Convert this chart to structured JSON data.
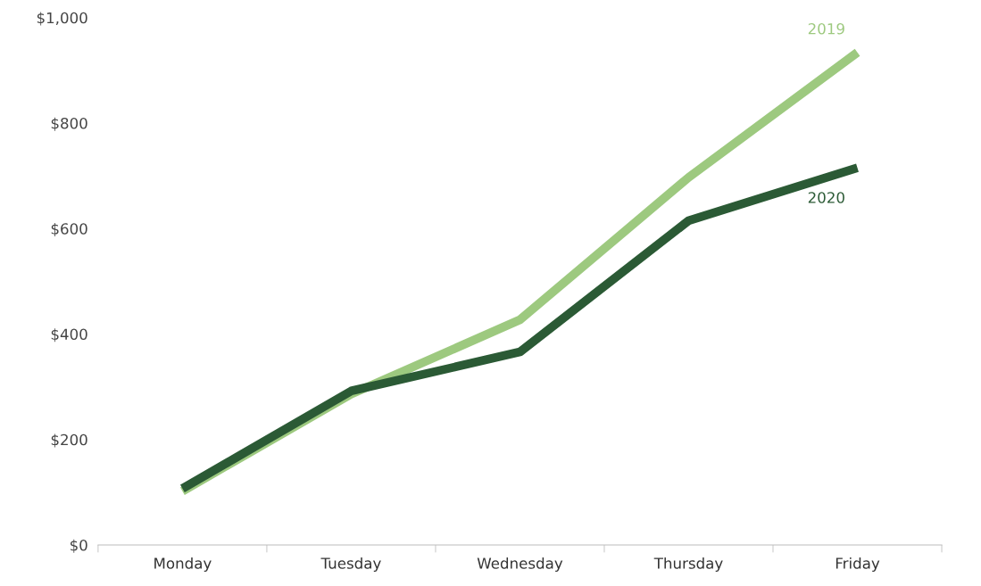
{
  "chart_data": {
    "type": "line",
    "categories": [
      "Monday",
      "Tuesday",
      "Wednesday",
      "Thursday",
      "Friday"
    ],
    "series": [
      {
        "name": "2019",
        "color": "#9dc97f",
        "values": [
          102,
          286,
          427,
          697,
          934
        ]
      },
      {
        "name": "2020",
        "color": "#2b5a35",
        "values": [
          107,
          292,
          366,
          615,
          715
        ]
      }
    ],
    "ylim": [
      0,
      1000
    ],
    "yticks": [
      {
        "value": 0,
        "label": "$0"
      },
      {
        "value": 200,
        "label": "$200"
      },
      {
        "value": 400,
        "label": "$400"
      },
      {
        "value": 600,
        "label": "$600"
      },
      {
        "value": 800,
        "label": "$800"
      },
      {
        "value": 1000,
        "label": "$1,000"
      }
    ],
    "grid": false,
    "legend": false,
    "marker": "none",
    "line_style": "solid"
  }
}
